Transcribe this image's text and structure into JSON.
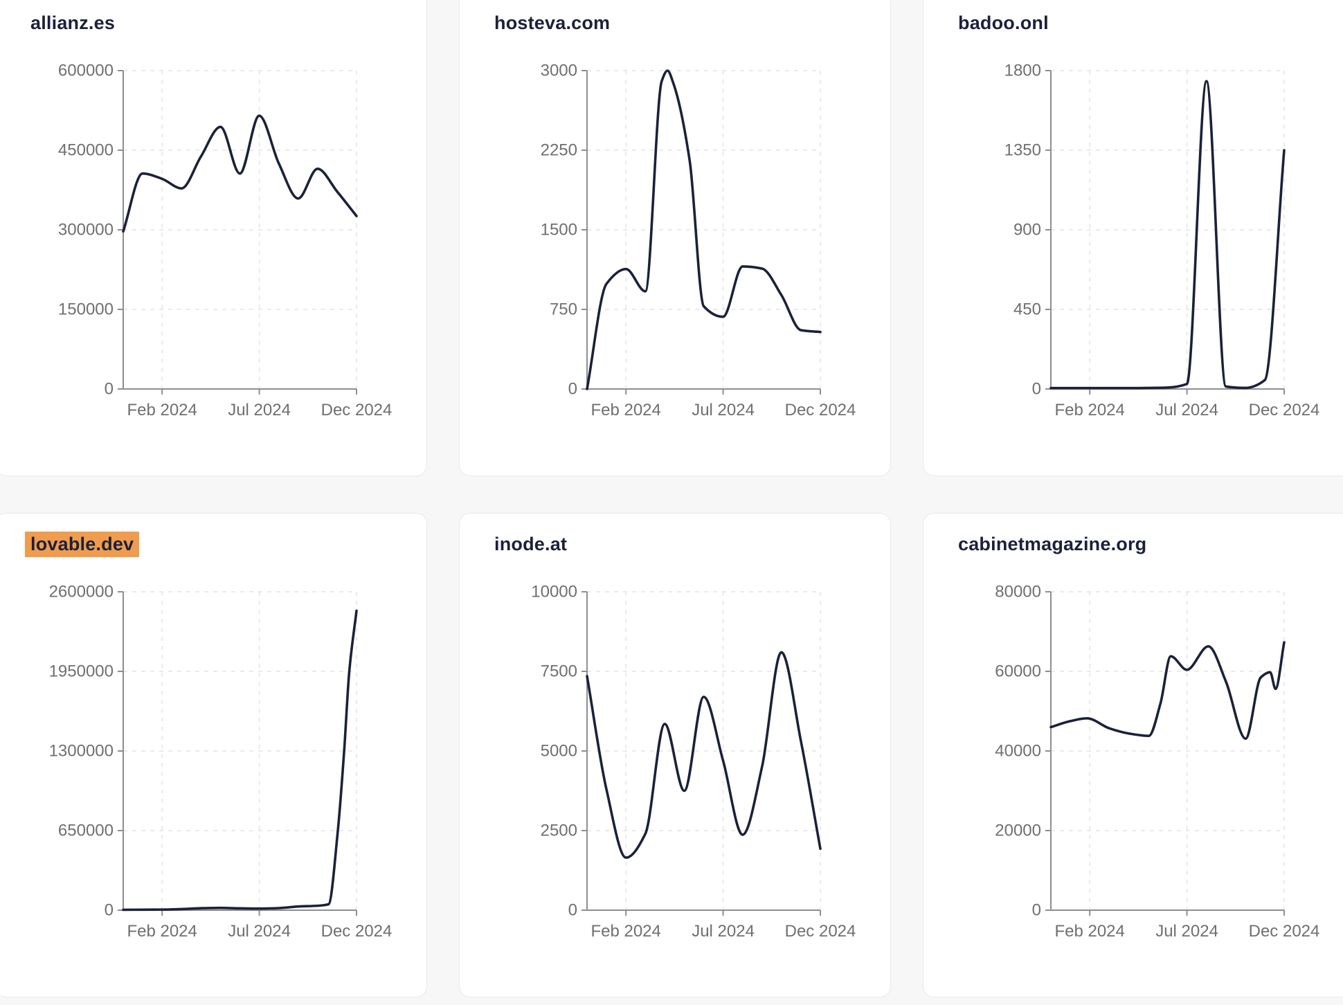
{
  "page": {
    "background": "#f7f7f8",
    "card_background": "#ffffff",
    "card_border": "#e9e9ec",
    "title_color": "#1b2139",
    "line_color": "#1b2139",
    "highlight_color": "#f09c4e",
    "axis_color": "#8e8e90",
    "tick_label_color": "#6f6f71",
    "grid_color": "#e4e4e7"
  },
  "x_axis": {
    "tick_labels": [
      "Feb 2024",
      "Jul 2024",
      "Dec 2024"
    ],
    "tick_positions": [
      0.1667,
      0.5833,
      1.0
    ],
    "range": [
      "Dec 2023",
      "Dec 2024"
    ]
  },
  "charts": [
    {
      "title": "allianz.es",
      "highlighted": false,
      "chart_data": {
        "type": "line",
        "ylim": [
          0,
          600000
        ],
        "y_ticks": [
          0,
          150000,
          300000,
          450000,
          600000
        ],
        "x_tick_labels": [
          "Feb 2024",
          "Jul 2024",
          "Dec 2024"
        ],
        "grid": true,
        "points": [
          [
            0,
            297000
          ],
          [
            0.083,
            406000
          ],
          [
            0.167,
            396000
          ],
          [
            0.25,
            378000
          ],
          [
            0.333,
            438000
          ],
          [
            0.417,
            494000
          ],
          [
            0.5,
            406000
          ],
          [
            0.583,
            515000
          ],
          [
            0.667,
            425000
          ],
          [
            0.75,
            359000
          ],
          [
            0.833,
            415000
          ],
          [
            0.917,
            372000
          ],
          [
            1,
            326000
          ]
        ]
      }
    },
    {
      "title": "hosteva.com",
      "highlighted": false,
      "chart_data": {
        "type": "line",
        "ylim": [
          0,
          3000
        ],
        "y_ticks": [
          0,
          750,
          1500,
          2250,
          3000
        ],
        "x_tick_labels": [
          "Feb 2024",
          "Jul 2024",
          "Dec 2024"
        ],
        "grid": true,
        "points": [
          [
            0,
            0
          ],
          [
            0.083,
            990
          ],
          [
            0.167,
            1130
          ],
          [
            0.25,
            920
          ],
          [
            0.32,
            2900
          ],
          [
            0.345,
            3000
          ],
          [
            0.37,
            2880
          ],
          [
            0.44,
            2150
          ],
          [
            0.5,
            780
          ],
          [
            0.583,
            680
          ],
          [
            0.667,
            1155
          ],
          [
            0.75,
            1135
          ],
          [
            0.833,
            885
          ],
          [
            0.917,
            554
          ],
          [
            1,
            537
          ]
        ]
      }
    },
    {
      "title": "badoo.onl",
      "highlighted": false,
      "chart_data": {
        "type": "line",
        "ylim": [
          0,
          1800
        ],
        "y_ticks": [
          0,
          450,
          900,
          1350,
          1800
        ],
        "x_tick_labels": [
          "Feb 2024",
          "Jul 2024",
          "Dec 2024"
        ],
        "grid": true,
        "points": [
          [
            0,
            5
          ],
          [
            0.083,
            5
          ],
          [
            0.167,
            5
          ],
          [
            0.25,
            5
          ],
          [
            0.333,
            5
          ],
          [
            0.417,
            6
          ],
          [
            0.5,
            8
          ],
          [
            0.583,
            28
          ],
          [
            0.667,
            1740
          ],
          [
            0.75,
            14
          ],
          [
            0.833,
            6
          ],
          [
            0.917,
            50
          ],
          [
            1,
            1350
          ]
        ]
      }
    },
    {
      "title": "lovable.dev",
      "highlighted": true,
      "chart_data": {
        "type": "line",
        "ylim": [
          0,
          2600000
        ],
        "y_ticks": [
          0,
          650000,
          1300000,
          1950000,
          2600000
        ],
        "x_tick_labels": [
          "Feb 2024",
          "Jul 2024",
          "Dec 2024"
        ],
        "grid": true,
        "points": [
          [
            0,
            3000
          ],
          [
            0.083,
            4000
          ],
          [
            0.167,
            5000
          ],
          [
            0.25,
            9000
          ],
          [
            0.333,
            16000
          ],
          [
            0.417,
            19000
          ],
          [
            0.5,
            15000
          ],
          [
            0.583,
            13000
          ],
          [
            0.667,
            17000
          ],
          [
            0.75,
            30000
          ],
          [
            0.833,
            36000
          ],
          [
            0.88,
            48000
          ],
          [
            0.92,
            650000
          ],
          [
            0.947,
            1300000
          ],
          [
            0.969,
            1950000
          ],
          [
            1,
            2445000
          ]
        ]
      }
    },
    {
      "title": "inode.at",
      "highlighted": false,
      "chart_data": {
        "type": "line",
        "ylim": [
          0,
          10000
        ],
        "y_ticks": [
          0,
          2500,
          5000,
          7500,
          10000
        ],
        "x_tick_labels": [
          "Feb 2024",
          "Jul 2024",
          "Dec 2024"
        ],
        "grid": true,
        "points": [
          [
            0,
            7350
          ],
          [
            0.083,
            3800
          ],
          [
            0.167,
            1650
          ],
          [
            0.25,
            2400
          ],
          [
            0.333,
            5850
          ],
          [
            0.417,
            3750
          ],
          [
            0.5,
            6700
          ],
          [
            0.583,
            4700
          ],
          [
            0.667,
            2370
          ],
          [
            0.75,
            4500
          ],
          [
            0.833,
            8100
          ],
          [
            0.917,
            5300
          ],
          [
            1,
            1930
          ]
        ]
      }
    },
    {
      "title": "cabinetmagazine.org",
      "highlighted": false,
      "chart_data": {
        "type": "line",
        "ylim": [
          0,
          80000
        ],
        "y_ticks": [
          0,
          20000,
          40000,
          60000,
          80000
        ],
        "x_tick_labels": [
          "Feb 2024",
          "Jul 2024",
          "Dec 2024"
        ],
        "grid": true,
        "points": [
          [
            0,
            46000
          ],
          [
            0.083,
            47500
          ],
          [
            0.155,
            48200
          ],
          [
            0.25,
            45700
          ],
          [
            0.333,
            44400
          ],
          [
            0.42,
            43800
          ],
          [
            0.47,
            52000
          ],
          [
            0.514,
            63800
          ],
          [
            0.583,
            60400
          ],
          [
            0.675,
            66300
          ],
          [
            0.75,
            57500
          ],
          [
            0.835,
            43100
          ],
          [
            0.9,
            58500
          ],
          [
            0.94,
            59800
          ],
          [
            0.963,
            55600
          ],
          [
            1,
            67300
          ]
        ]
      }
    }
  ]
}
